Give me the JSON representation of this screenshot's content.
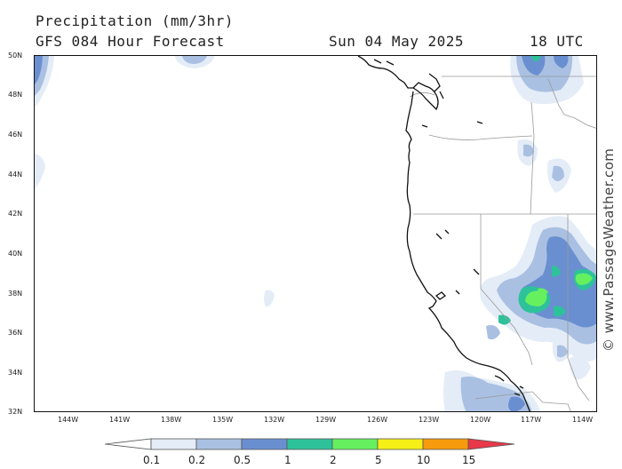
{
  "header": {
    "title": "Precipitation (mm/3hr)",
    "subtitle": "GFS 084 Hour Forecast",
    "valid_date": "Sun 04 May 2025",
    "valid_time": "18 UTC"
  },
  "watermark": "© www.PassageWeather.com",
  "map": {
    "projection": "lat-lon",
    "lat_range": [
      32,
      50
    ],
    "lon_range": [
      -146,
      -113
    ],
    "lat_labels": [
      "50N",
      "48N",
      "46N",
      "44N",
      "42N",
      "40N",
      "38N",
      "36N",
      "34N",
      "32N"
    ],
    "lon_labels": [
      "144W",
      "141W",
      "138W",
      "135W",
      "132W",
      "129W",
      "126W",
      "123W",
      "120W",
      "117W",
      "114W"
    ]
  },
  "legend": {
    "thresholds": [
      "0.1",
      "0.2",
      "0.5",
      "1",
      "2",
      "5",
      "10",
      "15"
    ],
    "colors": [
      "#ffffff",
      "#e4ecf7",
      "#a9c0e2",
      "#6a8fd0",
      "#2ec29a",
      "#66f060",
      "#f6f016",
      "#f79a0c",
      "#e8384a"
    ]
  }
}
